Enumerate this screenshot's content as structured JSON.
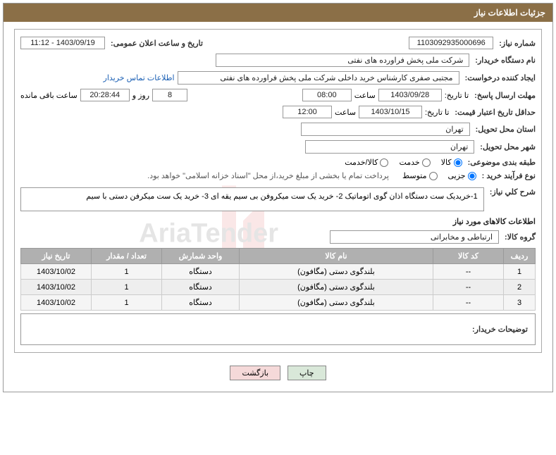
{
  "header": {
    "title": "جزئیات اطلاعات نیاز"
  },
  "form": {
    "need_number_label": "شماره نیاز:",
    "need_number": "1103092935000696",
    "announce_label": "تاریخ و ساعت اعلان عمومی:",
    "announce_value": "1403/09/19 - 11:12",
    "buyer_org_label": "نام دستگاه خریدار:",
    "buyer_org": "شرکت ملی پخش فراورده های نفتی",
    "requester_label": "ایجاد کننده درخواست:",
    "requester": "مجتبی صفری کارشناس خرید داخلی شرکت ملی پخش فراورده های نفتی",
    "contact_link": "اطلاعات تماس خریدار",
    "deadline_label": "مهلت ارسال پاسخ:",
    "until_label": "تا تاریخ:",
    "deadline_date": "1403/09/28",
    "time_label": "ساعت",
    "deadline_time": "08:00",
    "days_value": "8",
    "days_and": "روز و",
    "countdown": "20:28:44",
    "remaining_label": "ساعت باقی مانده",
    "validity_label": "حداقل تاریخ اعتبار قیمت:",
    "validity_date": "1403/10/15",
    "validity_time": "12:00",
    "province_label": "استان محل تحویل:",
    "province": "تهران",
    "city_label": "شهر محل تحویل:",
    "city": "تهران",
    "category_label": "طبقه بندی موضوعی:",
    "radio_goods": "کالا",
    "radio_service": "خدمت",
    "radio_both": "کالا/خدمت",
    "process_label": "نوع فرآیند خرید :",
    "radio_partial": "جزیی",
    "radio_medium": "متوسط",
    "payment_note": "پرداخت تمام یا بخشی از مبلغ خرید،از محل \"اسناد خزانه اسلامی\" خواهد بود.",
    "desc_label": "شرح کلي نياز:",
    "desc_text": "1-خریدیک ست دستگاه اذان گوی اتوماتیک 2- خرید یک ست میکروفن بی سیم یقه ای 3- خرید یک ست میکرفن دستی با سیم",
    "items_title": "اطلاعات کالاهای مورد نیاز",
    "group_label": "گروه کالا:",
    "group_value": "ارتباطی و مخابراتی",
    "buyer_notes_label": "توضیحات خریدار:"
  },
  "table": {
    "headers": {
      "row": "ردیف",
      "code": "کد کالا",
      "name": "نام کالا",
      "unit": "واحد شمارش",
      "qty": "تعداد / مقدار",
      "date": "تاریخ نیاز"
    },
    "rows": [
      {
        "n": "1",
        "code": "--",
        "name": "بلندگوی دستی (مگافون)",
        "unit": "دستگاه",
        "qty": "1",
        "date": "1403/10/02"
      },
      {
        "n": "2",
        "code": "--",
        "name": "بلندگوی دستی (مگافون)",
        "unit": "دستگاه",
        "qty": "1",
        "date": "1403/10/02"
      },
      {
        "n": "3",
        "code": "--",
        "name": "بلندگوی دستی (مگافون)",
        "unit": "دستگاه",
        "qty": "1",
        "date": "1403/10/02"
      }
    ]
  },
  "buttons": {
    "print": "چاپ",
    "back": "بازگشت"
  }
}
